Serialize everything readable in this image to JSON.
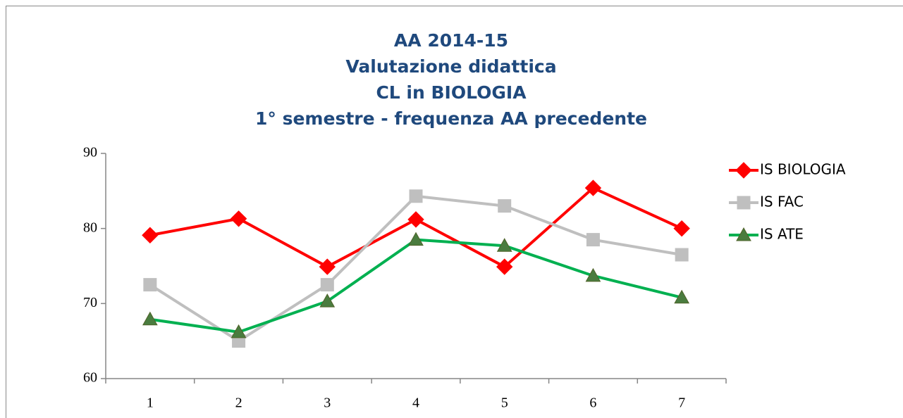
{
  "chart_data": {
    "type": "line",
    "title": [
      "AA 2014-15",
      "Valutazione didattica",
      "CL in BIOLOGIA",
      "1° semestre - frequenza AA precedente"
    ],
    "categories": [
      "1",
      "2",
      "3",
      "4",
      "5",
      "6",
      "7"
    ],
    "series": [
      {
        "name": "IS BIOLOGIA",
        "color": "#ff0000",
        "marker": "diamond",
        "values": [
          79.1,
          81.3,
          74.9,
          81.2,
          74.9,
          85.4,
          80.0
        ]
      },
      {
        "name": "IS FAC",
        "color": "#bfbfbf",
        "marker": "square",
        "values": [
          72.5,
          65.0,
          72.5,
          84.3,
          83.0,
          78.5,
          76.5
        ]
      },
      {
        "name": "IS ATE",
        "color": "#00b050",
        "marker": "triangle",
        "values": [
          67.9,
          66.2,
          70.3,
          78.5,
          77.7,
          73.7,
          70.8
        ]
      }
    ],
    "ylim": [
      60,
      90
    ],
    "yticks": [
      60,
      70,
      80,
      90
    ],
    "legend": "right"
  }
}
